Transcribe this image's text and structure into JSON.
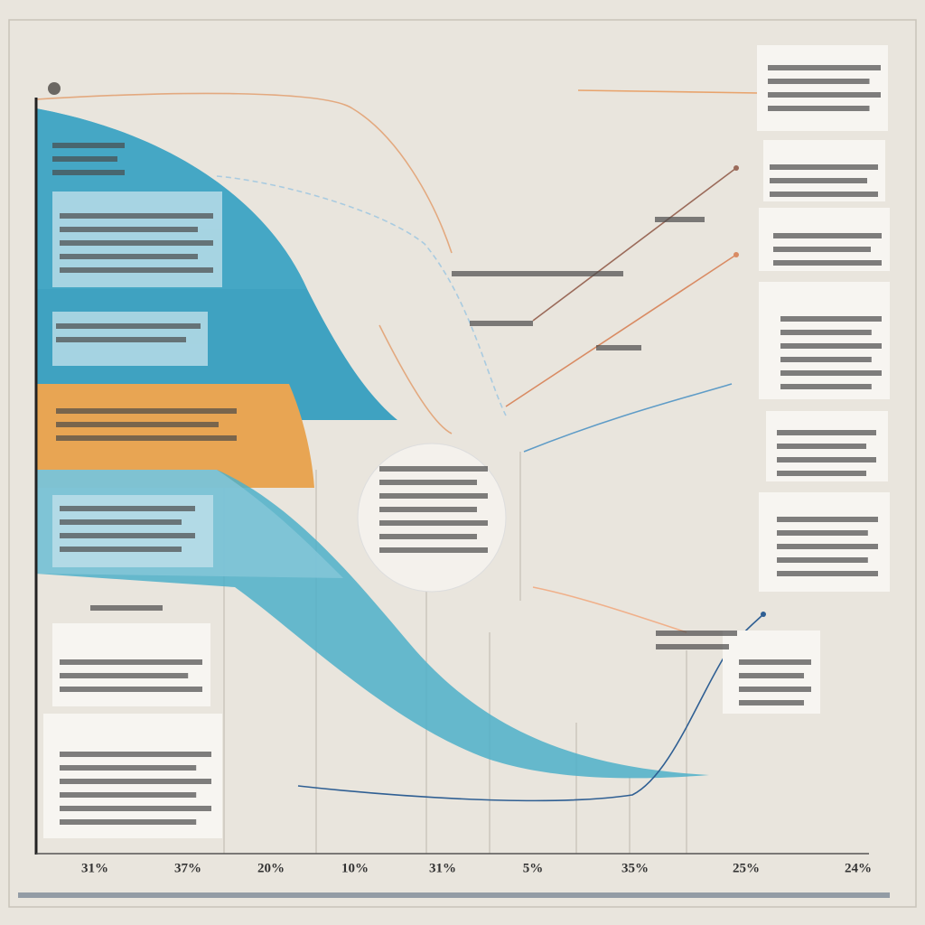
{
  "x_axis": {
    "labels": [
      "31%",
      "37%",
      "20%",
      "10%",
      "31%",
      "5%",
      "35%",
      "25%",
      "24%"
    ]
  }
}
